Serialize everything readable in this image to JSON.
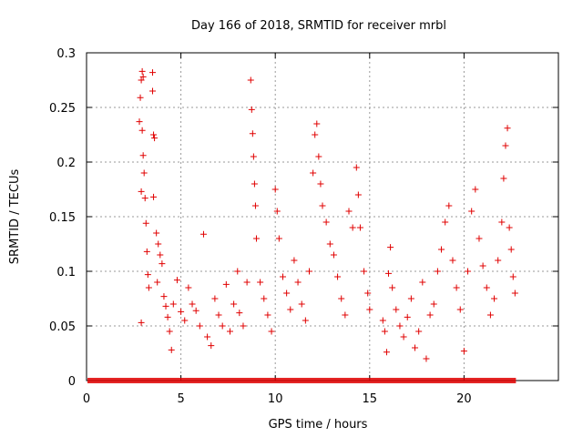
{
  "chart_data": {
    "type": "scatter",
    "title": "Day 166 of 2018, SRMTID for receiver mrbl",
    "xlabel": "GPS time / hours",
    "ylabel": "SRMTID / TECUs",
    "xlim": [
      0,
      25
    ],
    "ylim": [
      0,
      0.3
    ],
    "xticks": [
      0,
      5,
      10,
      15,
      20
    ],
    "xtick_labels": [
      "0",
      "5",
      "10",
      "15",
      "20"
    ],
    "yticks": [
      0,
      0.05,
      0.1,
      0.15,
      0.2,
      0.25,
      0.3
    ],
    "ytick_labels": [
      "0",
      "0.05",
      "0.1",
      "0.15",
      "0.2",
      "0.25",
      "0.3"
    ],
    "grid": true,
    "marker": "+",
    "color": "#e00000",
    "zero_band": {
      "x_start": 0.05,
      "x_end": 22.75,
      "y": 0
    },
    "series": [
      {
        "name": "SRMTID",
        "points": [
          [
            2.8,
            0.237
          ],
          [
            2.85,
            0.259
          ],
          [
            2.9,
            0.275
          ],
          [
            2.95,
            0.283
          ],
          [
            3.0,
            0.278
          ],
          [
            2.95,
            0.229
          ],
          [
            3.0,
            0.206
          ],
          [
            3.05,
            0.19
          ],
          [
            2.9,
            0.173
          ],
          [
            3.1,
            0.167
          ],
          [
            3.15,
            0.144
          ],
          [
            3.2,
            0.118
          ],
          [
            3.25,
            0.097
          ],
          [
            2.9,
            0.053
          ],
          [
            3.3,
            0.085
          ],
          [
            3.5,
            0.282
          ],
          [
            3.5,
            0.265
          ],
          [
            3.55,
            0.225
          ],
          [
            3.6,
            0.222
          ],
          [
            3.55,
            0.168
          ],
          [
            3.7,
            0.135
          ],
          [
            3.8,
            0.125
          ],
          [
            3.9,
            0.115
          ],
          [
            4.0,
            0.107
          ],
          [
            3.75,
            0.09
          ],
          [
            4.1,
            0.077
          ],
          [
            4.2,
            0.068
          ],
          [
            4.3,
            0.058
          ],
          [
            4.4,
            0.045
          ],
          [
            4.5,
            0.028
          ],
          [
            4.6,
            0.07
          ],
          [
            4.8,
            0.092
          ],
          [
            5.0,
            0.063
          ],
          [
            5.2,
            0.055
          ],
          [
            5.4,
            0.085
          ],
          [
            5.6,
            0.07
          ],
          [
            5.8,
            0.064
          ],
          [
            6.0,
            0.05
          ],
          [
            6.2,
            0.134
          ],
          [
            6.4,
            0.04
          ],
          [
            6.6,
            0.032
          ],
          [
            6.8,
            0.075
          ],
          [
            7.0,
            0.06
          ],
          [
            7.2,
            0.05
          ],
          [
            7.4,
            0.088
          ],
          [
            7.6,
            0.045
          ],
          [
            7.8,
            0.07
          ],
          [
            8.0,
            0.1
          ],
          [
            8.1,
            0.062
          ],
          [
            8.3,
            0.05
          ],
          [
            8.5,
            0.09
          ],
          [
            8.7,
            0.275
          ],
          [
            8.75,
            0.248
          ],
          [
            8.8,
            0.226
          ],
          [
            8.85,
            0.205
          ],
          [
            8.9,
            0.18
          ],
          [
            8.95,
            0.16
          ],
          [
            9.0,
            0.13
          ],
          [
            9.2,
            0.09
          ],
          [
            9.4,
            0.075
          ],
          [
            9.6,
            0.06
          ],
          [
            9.8,
            0.045
          ],
          [
            10.0,
            0.175
          ],
          [
            10.1,
            0.155
          ],
          [
            10.2,
            0.13
          ],
          [
            10.4,
            0.095
          ],
          [
            10.6,
            0.08
          ],
          [
            10.8,
            0.065
          ],
          [
            11.0,
            0.11
          ],
          [
            11.2,
            0.09
          ],
          [
            11.4,
            0.07
          ],
          [
            11.6,
            0.055
          ],
          [
            11.8,
            0.1
          ],
          [
            12.0,
            0.19
          ],
          [
            12.1,
            0.225
          ],
          [
            12.2,
            0.235
          ],
          [
            12.3,
            0.205
          ],
          [
            12.4,
            0.18
          ],
          [
            12.5,
            0.16
          ],
          [
            12.7,
            0.145
          ],
          [
            12.9,
            0.125
          ],
          [
            13.1,
            0.115
          ],
          [
            13.3,
            0.095
          ],
          [
            13.5,
            0.075
          ],
          [
            13.7,
            0.06
          ],
          [
            13.9,
            0.155
          ],
          [
            14.1,
            0.14
          ],
          [
            14.3,
            0.195
          ],
          [
            14.4,
            0.17
          ],
          [
            14.5,
            0.14
          ],
          [
            14.7,
            0.1
          ],
          [
            14.9,
            0.08
          ],
          [
            15.0,
            0.065
          ],
          [
            15.7,
            0.055
          ],
          [
            15.8,
            0.045
          ],
          [
            15.9,
            0.026
          ],
          [
            16.0,
            0.098
          ],
          [
            16.1,
            0.122
          ],
          [
            16.2,
            0.085
          ],
          [
            16.4,
            0.065
          ],
          [
            16.6,
            0.05
          ],
          [
            16.8,
            0.04
          ],
          [
            17.0,
            0.058
          ],
          [
            17.2,
            0.075
          ],
          [
            17.4,
            0.03
          ],
          [
            17.6,
            0.045
          ],
          [
            17.8,
            0.09
          ],
          [
            18.0,
            0.02
          ],
          [
            18.2,
            0.06
          ],
          [
            18.4,
            0.07
          ],
          [
            18.6,
            0.1
          ],
          [
            18.8,
            0.12
          ],
          [
            19.0,
            0.145
          ],
          [
            19.2,
            0.16
          ],
          [
            19.4,
            0.11
          ],
          [
            19.6,
            0.085
          ],
          [
            19.8,
            0.065
          ],
          [
            20.0,
            0.027
          ],
          [
            20.2,
            0.1
          ],
          [
            20.4,
            0.155
          ],
          [
            20.6,
            0.175
          ],
          [
            20.8,
            0.13
          ],
          [
            21.0,
            0.105
          ],
          [
            21.2,
            0.085
          ],
          [
            21.4,
            0.06
          ],
          [
            21.6,
            0.075
          ],
          [
            21.8,
            0.11
          ],
          [
            22.0,
            0.145
          ],
          [
            22.1,
            0.185
          ],
          [
            22.2,
            0.215
          ],
          [
            22.3,
            0.231
          ],
          [
            22.4,
            0.14
          ],
          [
            22.5,
            0.12
          ],
          [
            22.6,
            0.095
          ],
          [
            22.7,
            0.08
          ]
        ]
      }
    ]
  }
}
